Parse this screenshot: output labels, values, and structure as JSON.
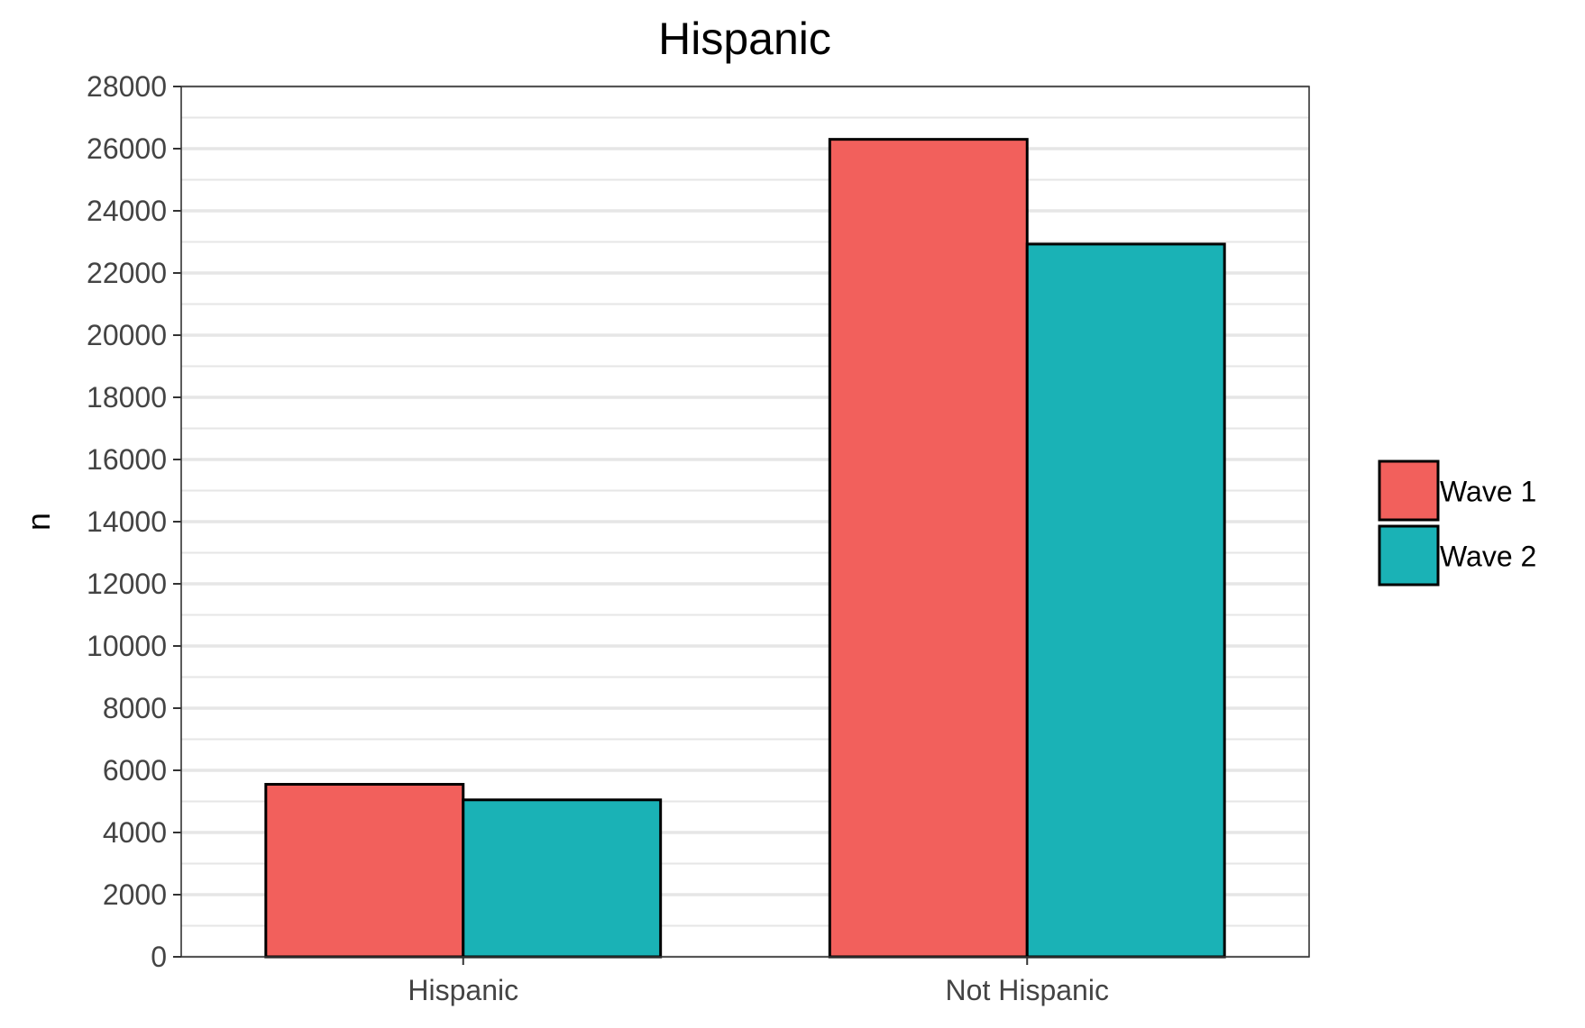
{
  "chart_data": {
    "type": "bar",
    "title": "Hispanic",
    "xlabel": "",
    "ylabel": "n",
    "categories": [
      "Hispanic",
      "Not Hispanic"
    ],
    "series": [
      {
        "name": "Wave 1",
        "color": "#F2605C",
        "values": [
          5550,
          26300
        ]
      },
      {
        "name": "Wave 2",
        "color": "#1AB2B6",
        "values": [
          5050,
          22930
        ]
      }
    ],
    "ylim": [
      0,
      28000
    ],
    "yticks": [
      "0",
      "2000",
      "4000",
      "6000",
      "8000",
      "10000",
      "12000",
      "14000",
      "16000",
      "18000",
      "20000",
      "22000",
      "24000",
      "26000",
      "28000"
    ],
    "grid": true,
    "legend_position": "right",
    "colors": {
      "wave1": "#F2605C",
      "wave2": "#1AB2B6",
      "grid": "#E6E6E6",
      "bar_outline": "#000000"
    }
  }
}
